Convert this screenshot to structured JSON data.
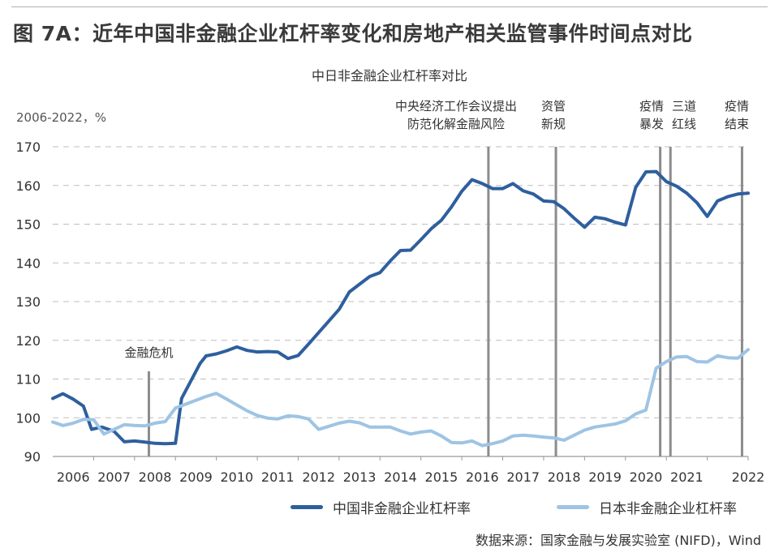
{
  "figure": {
    "title": "图 7A：近年中国非金融企业杠杆率变化和房地产相关监管事件时间点对比",
    "source": "数据来源：国家金融与发展实验室 (NIFD)，Wind"
  },
  "colors": {
    "china": "#2e5f9e",
    "japan": "#9ec4e4",
    "event_line": "#8c8c8c",
    "grid": "#bdbdbd"
  },
  "chart_data": {
    "type": "line",
    "title": "中日非金融企业杠杆率对比",
    "unit_label": "2006-2022，%",
    "ylim": [
      90,
      170
    ],
    "yticks": [
      90,
      100,
      110,
      120,
      130,
      140,
      150,
      160,
      170
    ],
    "xlim": [
      2005.0,
      2022.0
    ],
    "xtick_labels": [
      "2006",
      "2007",
      "2008",
      "2009",
      "2010",
      "2011",
      "2012",
      "2013",
      "2014",
      "2015",
      "2016",
      "2017",
      "2018",
      "2019",
      "2020",
      "2021",
      "2022"
    ],
    "grid": "horizontal dashed",
    "legend_position": "bottom",
    "series": [
      {
        "name": "中国非金融企业杠杆率",
        "color": "#2e5f9e",
        "points": [
          [
            2005.0,
            105.0
          ],
          [
            2005.25,
            106.2
          ],
          [
            2005.5,
            104.8
          ],
          [
            2005.75,
            103.0
          ],
          [
            2005.95,
            97.0
          ],
          [
            2006.2,
            97.6
          ],
          [
            2006.5,
            96.5
          ],
          [
            2006.75,
            93.8
          ],
          [
            2007.0,
            94.0
          ],
          [
            2007.25,
            93.7
          ],
          [
            2007.5,
            93.4
          ],
          [
            2007.75,
            93.3
          ],
          [
            2008.0,
            93.4
          ],
          [
            2008.15,
            105.0
          ],
          [
            2008.35,
            109.0
          ],
          [
            2008.6,
            114.0
          ],
          [
            2008.75,
            116.0
          ],
          [
            2009.0,
            116.5
          ],
          [
            2009.25,
            117.3
          ],
          [
            2009.5,
            118.3
          ],
          [
            2009.75,
            117.4
          ],
          [
            2010.0,
            117.0
          ],
          [
            2010.25,
            117.1
          ],
          [
            2010.5,
            117.0
          ],
          [
            2010.75,
            115.3
          ],
          [
            2011.0,
            116.1
          ],
          [
            2011.25,
            119.0
          ],
          [
            2011.5,
            122.0
          ],
          [
            2011.75,
            125.0
          ],
          [
            2012.0,
            128.0
          ],
          [
            2012.25,
            132.5
          ],
          [
            2012.5,
            134.5
          ],
          [
            2012.75,
            136.5
          ],
          [
            2013.0,
            137.5
          ],
          [
            2013.25,
            140.5
          ],
          [
            2013.5,
            143.2
          ],
          [
            2013.75,
            143.3
          ],
          [
            2014.0,
            146.0
          ],
          [
            2014.25,
            148.8
          ],
          [
            2014.5,
            151.0
          ],
          [
            2014.75,
            154.5
          ],
          [
            2015.0,
            158.5
          ],
          [
            2015.25,
            161.5
          ],
          [
            2015.5,
            160.5
          ],
          [
            2015.75,
            159.2
          ],
          [
            2016.0,
            159.2
          ],
          [
            2016.25,
            160.5
          ],
          [
            2016.5,
            158.6
          ],
          [
            2016.75,
            157.8
          ],
          [
            2017.0,
            156.0
          ],
          [
            2017.25,
            155.8
          ],
          [
            2017.5,
            154.0
          ],
          [
            2017.75,
            151.5
          ],
          [
            2018.0,
            149.2
          ],
          [
            2018.25,
            151.8
          ],
          [
            2018.5,
            151.4
          ],
          [
            2018.75,
            150.5
          ],
          [
            2019.0,
            149.8
          ],
          [
            2019.25,
            159.5
          ],
          [
            2019.5,
            163.5
          ],
          [
            2019.75,
            163.6
          ],
          [
            2020.0,
            161.0
          ],
          [
            2020.25,
            159.8
          ],
          [
            2020.5,
            158.0
          ],
          [
            2020.75,
            155.5
          ],
          [
            2021.0,
            152.0
          ],
          [
            2021.25,
            156.0
          ],
          [
            2021.5,
            157.1
          ],
          [
            2021.75,
            157.8
          ],
          [
            2022.0,
            158.0
          ]
        ]
      },
      {
        "name": "日本非金融企业杠杆率",
        "color": "#9ec4e4",
        "points": [
          [
            2005.0,
            98.9
          ],
          [
            2005.25,
            98.0
          ],
          [
            2005.5,
            98.6
          ],
          [
            2005.75,
            99.6
          ],
          [
            2006.0,
            99.5
          ],
          [
            2006.25,
            95.8
          ],
          [
            2006.5,
            97.0
          ],
          [
            2006.75,
            98.2
          ],
          [
            2007.0,
            98.0
          ],
          [
            2007.25,
            97.9
          ],
          [
            2007.5,
            98.6
          ],
          [
            2007.75,
            99.0
          ],
          [
            2008.0,
            102.5
          ],
          [
            2008.25,
            103.5
          ],
          [
            2008.5,
            104.5
          ],
          [
            2008.75,
            105.5
          ],
          [
            2009.0,
            106.3
          ],
          [
            2009.25,
            104.8
          ],
          [
            2009.5,
            103.3
          ],
          [
            2009.75,
            101.8
          ],
          [
            2010.0,
            100.6
          ],
          [
            2010.25,
            99.9
          ],
          [
            2010.5,
            99.7
          ],
          [
            2010.75,
            100.5
          ],
          [
            2011.0,
            100.3
          ],
          [
            2011.25,
            99.7
          ],
          [
            2011.5,
            97.0
          ],
          [
            2011.75,
            97.8
          ],
          [
            2012.0,
            98.6
          ],
          [
            2012.25,
            99.1
          ],
          [
            2012.5,
            98.7
          ],
          [
            2012.75,
            97.6
          ],
          [
            2013.0,
            97.6
          ],
          [
            2013.25,
            97.6
          ],
          [
            2013.5,
            96.6
          ],
          [
            2013.75,
            95.8
          ],
          [
            2014.0,
            96.3
          ],
          [
            2014.25,
            96.6
          ],
          [
            2014.5,
            95.3
          ],
          [
            2014.75,
            93.6
          ],
          [
            2015.0,
            93.5
          ],
          [
            2015.25,
            94.0
          ],
          [
            2015.5,
            92.8
          ],
          [
            2015.75,
            93.3
          ],
          [
            2016.0,
            94.0
          ],
          [
            2016.25,
            95.3
          ],
          [
            2016.5,
            95.5
          ],
          [
            2016.75,
            95.3
          ],
          [
            2017.0,
            95.0
          ],
          [
            2017.25,
            94.8
          ],
          [
            2017.5,
            94.2
          ],
          [
            2017.75,
            95.5
          ],
          [
            2018.0,
            96.8
          ],
          [
            2018.25,
            97.6
          ],
          [
            2018.5,
            98.0
          ],
          [
            2018.75,
            98.4
          ],
          [
            2019.0,
            99.2
          ],
          [
            2019.25,
            101.0
          ],
          [
            2019.5,
            102.0
          ],
          [
            2019.75,
            112.8
          ],
          [
            2020.0,
            114.5
          ],
          [
            2020.25,
            115.7
          ],
          [
            2020.5,
            115.8
          ],
          [
            2020.75,
            114.5
          ],
          [
            2021.0,
            114.4
          ],
          [
            2021.25,
            116.0
          ],
          [
            2021.5,
            115.5
          ],
          [
            2021.75,
            115.4
          ],
          [
            2022.0,
            117.6
          ]
        ]
      }
    ],
    "events": [
      {
        "x": 2007.35,
        "ymax": 112,
        "label_lines": [
          "金融危机"
        ]
      },
      {
        "x": 2015.65,
        "ymax": 170,
        "label_lines": [
          "中央经济工作会议提出",
          "防范化解金融风险"
        ]
      },
      {
        "x": 2017.3,
        "ymax": 170,
        "label_lines": [
          "资管",
          "新规"
        ]
      },
      {
        "x": 2019.85,
        "ymax": 170,
        "label_lines": [
          "疫情",
          "暴发"
        ]
      },
      {
        "x": 2020.1,
        "ymax": 170,
        "label_lines": [
          "三道",
          "红线"
        ]
      },
      {
        "x": 2021.85,
        "ymax": 170,
        "label_lines": [
          "疫情",
          "结束"
        ]
      }
    ]
  }
}
